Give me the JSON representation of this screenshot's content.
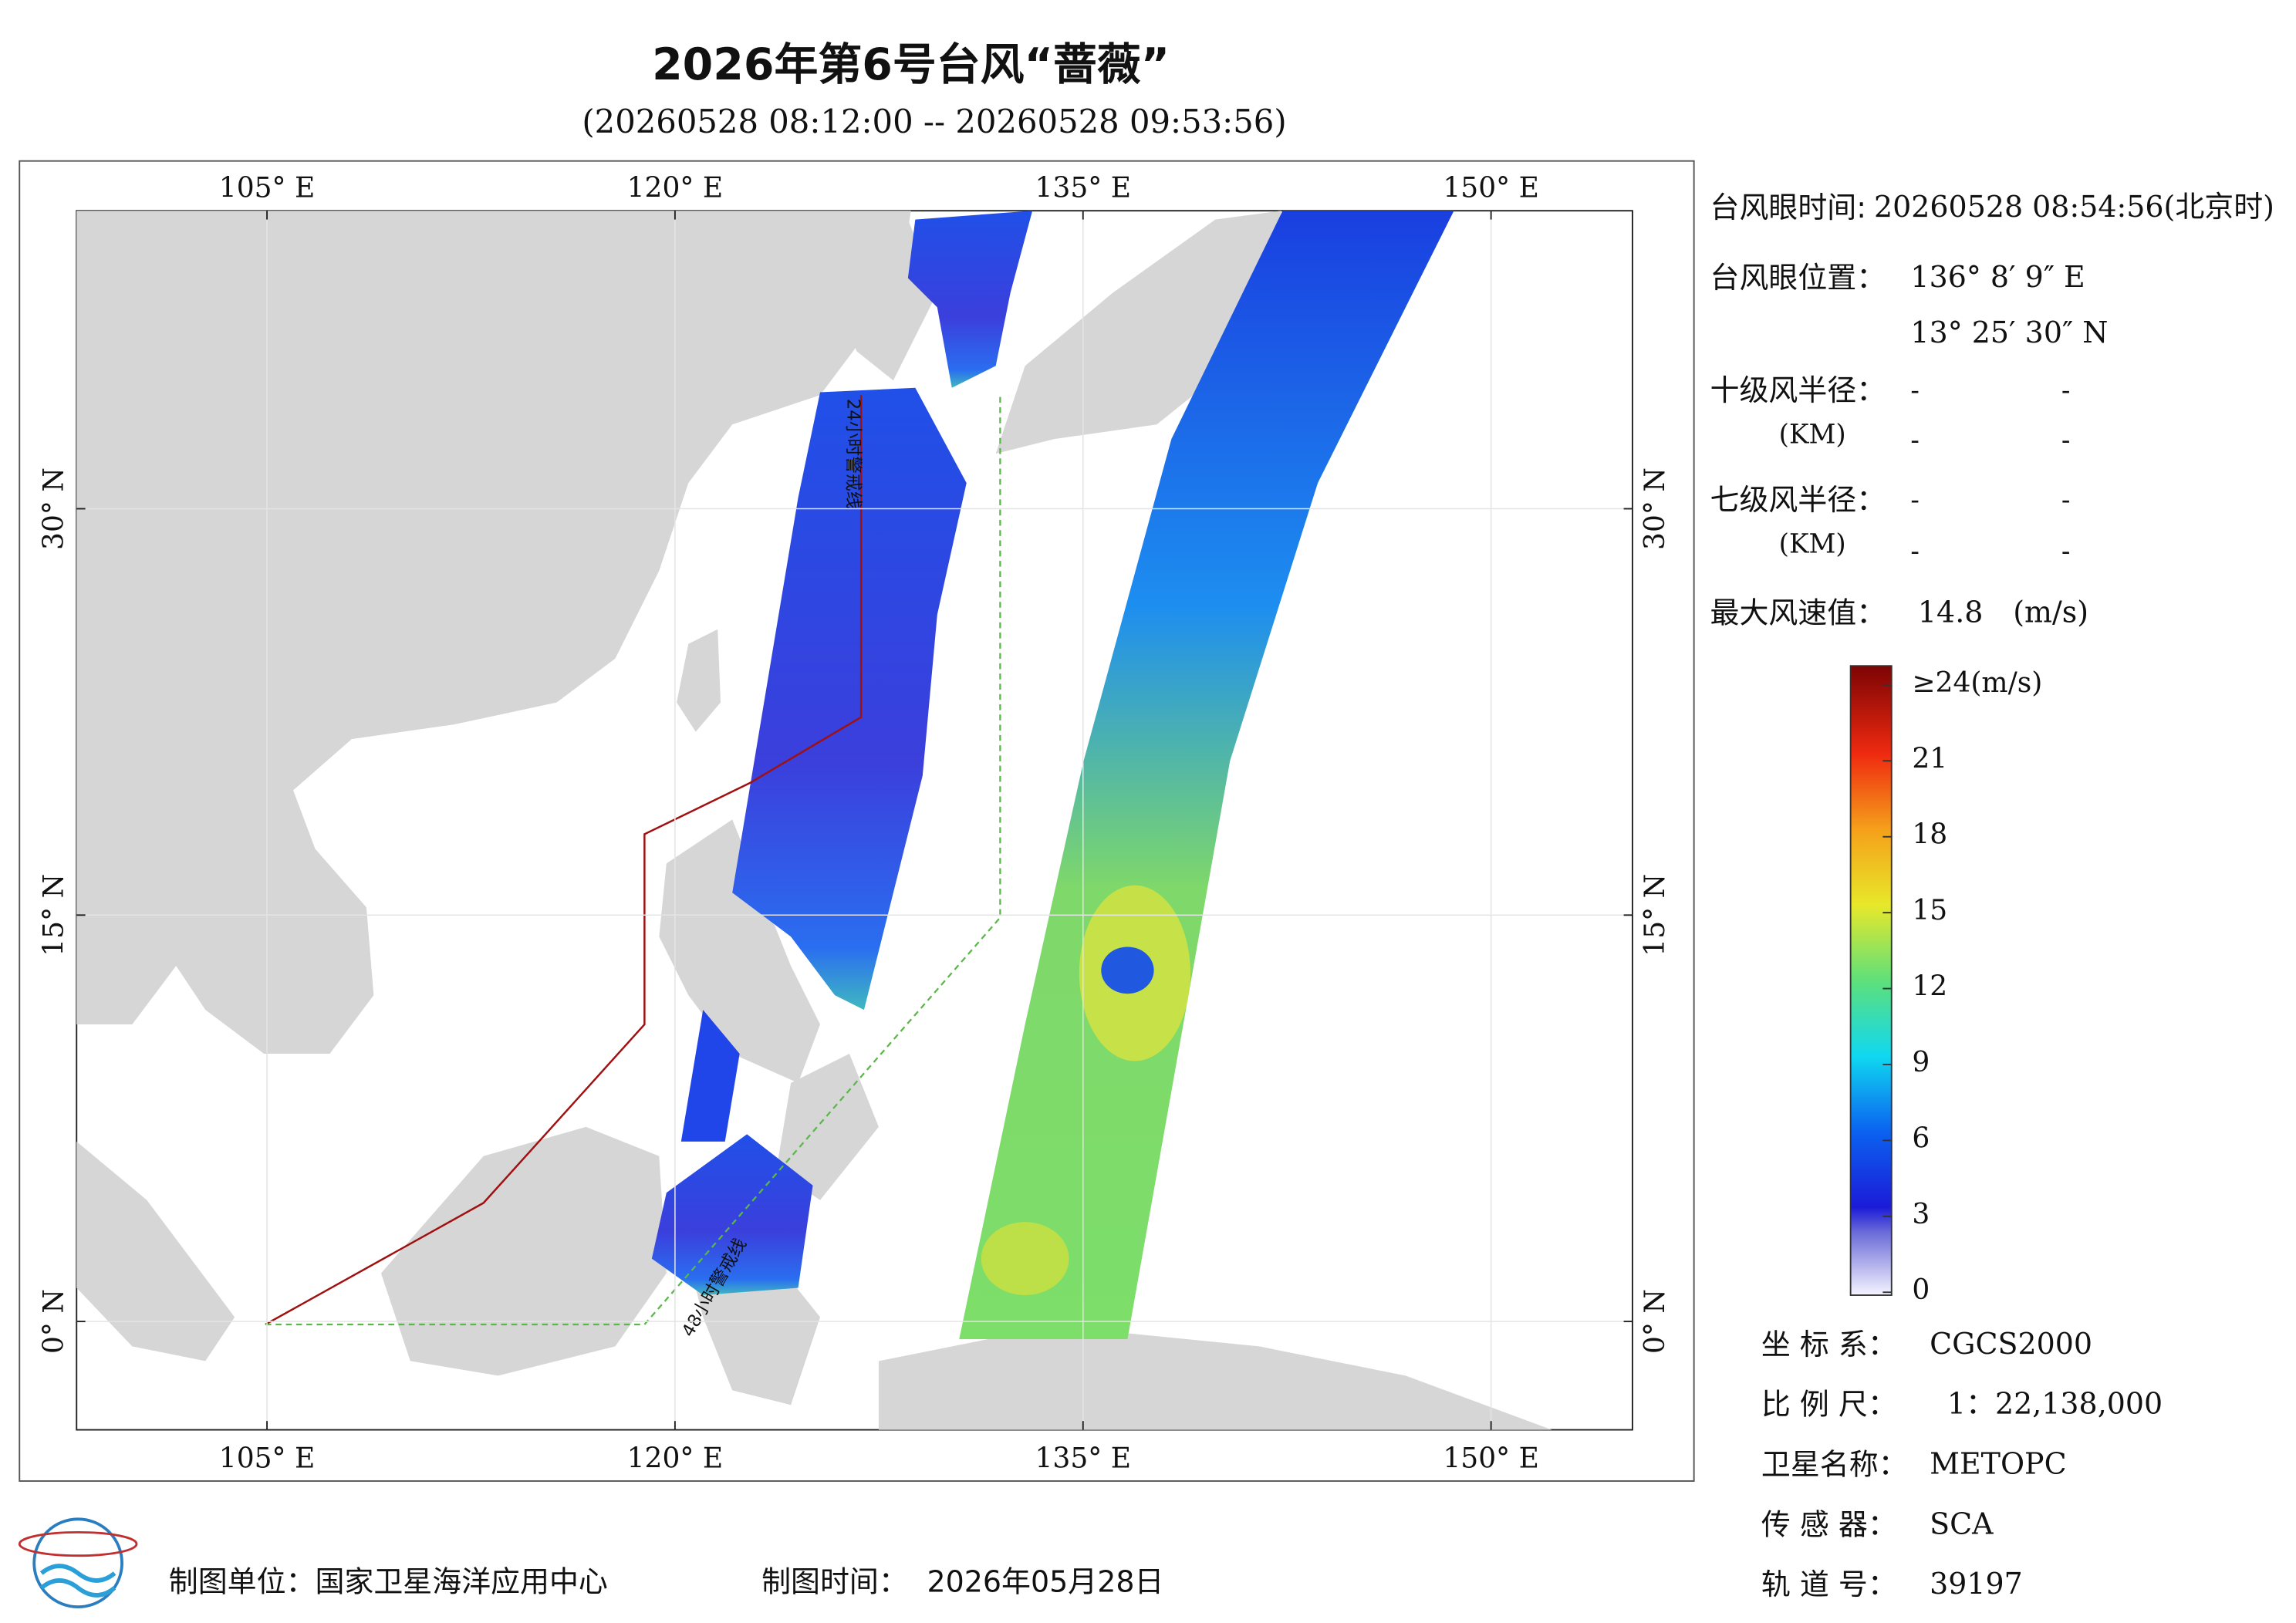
{
  "header": {
    "title": "2026年第6号台风“蔷薇”",
    "subtitle": "(20260528 08:12:00 -- 20260528 09:53:56)"
  },
  "map": {
    "xlim": [
      98,
      155.2
    ],
    "ylim": [
      -4,
      41
    ],
    "xticks": [
      {
        "value": 105,
        "label": "105° E"
      },
      {
        "value": 120,
        "label": "120° E"
      },
      {
        "value": 135,
        "label": "135° E"
      },
      {
        "value": 150,
        "label": "150° E"
      }
    ],
    "yticks": [
      {
        "value": 0,
        "label": "0° N"
      },
      {
        "value": 15,
        "label": "15° N"
      },
      {
        "value": 30,
        "label": "30° N"
      }
    ],
    "annotations": [
      "24小时警戒线",
      "48小时警戒线"
    ]
  },
  "info": {
    "eye_time": {
      "label": "台风眼时间:",
      "value": "20260528 08:54:56(北京时)"
    },
    "eye_position": {
      "label": "台风眼位置：",
      "lon": "136° 8′ 9″ E",
      "lat": "13° 25′ 30″ N"
    },
    "radius10": {
      "label": "十级风半径：",
      "unit": "(KM)",
      "values": [
        "-",
        "-",
        "-",
        "-"
      ]
    },
    "radius7": {
      "label": "七级风半径：",
      "unit": "(KM)",
      "values": [
        "-",
        "-",
        "-",
        "-"
      ]
    },
    "max_wind": {
      "label": "最大风速值：",
      "value": "14.8",
      "unit": "(m/s)"
    }
  },
  "colorbar": {
    "lim": [
      0,
      24
    ],
    "ticks": [
      {
        "value": 24,
        "label": "≥24(m/s)"
      },
      21,
      18,
      15,
      12,
      9,
      6,
      3,
      0
    ]
  },
  "meta": [
    {
      "label": "坐 标 系：",
      "value": "CGCS2000"
    },
    {
      "label": "比 例 尺：",
      "value": "1：22,138,000"
    },
    {
      "label": "卫星名称：",
      "value": "METOPC"
    },
    {
      "label": "传 感 器：",
      "value": "SCA"
    },
    {
      "label": "轨 道 号：",
      "value": "39197"
    }
  ],
  "footer": {
    "unit_label": "制图单位：国家卫星海洋应用中心",
    "time_label": "制图时间：",
    "time_value": "2026年05月28日"
  }
}
